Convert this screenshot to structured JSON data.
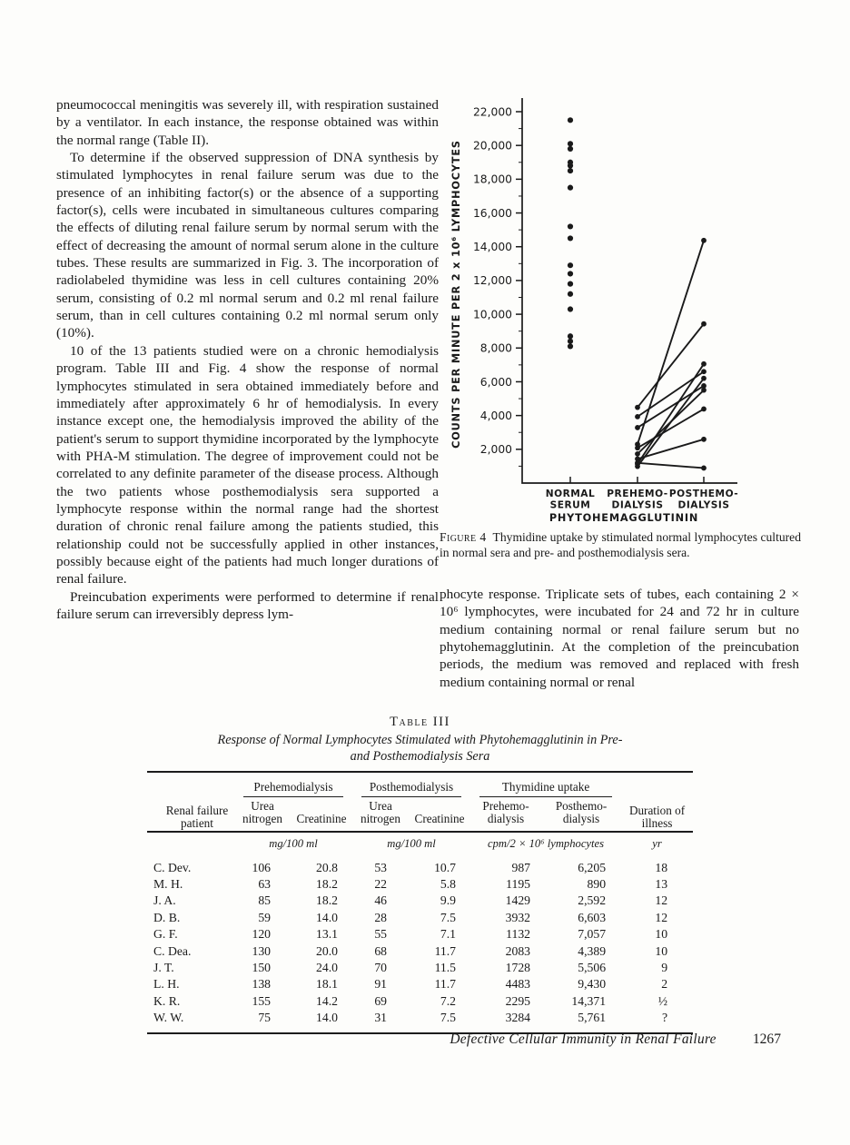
{
  "left_column": {
    "paragraphs": [
      {
        "indent": false,
        "text": "pneumococcal meningitis was severely ill, with respiration sustained by a ventilator. In each instance, the response obtained was within the normal range (Table II)."
      },
      {
        "indent": true,
        "text": "To determine if the observed suppression of DNA synthesis by stimulated lymphocytes in renal failure serum was due to the presence of an inhibiting factor(s) or the absence of a supporting factor(s), cells were incubated in simultaneous cultures comparing the effects of diluting renal failure serum by normal serum with the effect of decreasing the amount of normal serum alone in the culture tubes. These results are summarized in Fig. 3. The incorporation of radiolabeled thymidine was less in cell cultures containing 20% serum, consisting of 0.2 ml normal serum and 0.2 ml renal failure serum, than in cell cultures containing 0.2 ml normal serum only (10%)."
      },
      {
        "indent": true,
        "text": "10 of the 13 patients studied were on a chronic hemodialysis program. Table III and Fig. 4 show the response of normal lymphocytes stimulated in sera obtained immediately before and immediately after approximately 6 hr of hemodialysis. In every instance except one, the hemodialysis improved the ability of the patient's serum to support thymidine incorporated by the lymphocyte with PHA-M stimulation. The degree of improvement could not be correlated to any definite parameter of the disease process. Although the two patients whose posthemodialysis sera supported a lymphocyte response within the normal range had the shortest duration of chronic renal failure among the patients studied, this relationship could not be successfully applied in other instances, possibly because eight of the patients had much longer durations of renal failure."
      },
      {
        "indent": true,
        "text": "Preincubation experiments were performed to determine if renal failure serum can irreversibly depress lym-"
      }
    ]
  },
  "right_column": {
    "paragraphs": [
      {
        "indent": false,
        "text": "phocyte response. Triplicate sets of tubes, each containing 2 × 10⁶ lymphocytes, were incubated for 24 and 72 hr in culture medium containing normal or renal failure serum but no phytohemagglutinin. At the completion of the preincubation periods, the medium was removed and replaced with fresh medium containing normal or renal"
      }
    ]
  },
  "figure": {
    "caption_label": "Figure 4",
    "caption_text": "Thymidine uptake by stimulated normal lymphocytes cultured in normal sera and pre- and posthemodialysis sera."
  },
  "chart_data": {
    "type": "scatter",
    "title": "",
    "xlabel": "PHYTOHEMAGGLUTININ",
    "ylabel": "COUNTS PER MINUTE PER 2 x 10⁶ LYMPHOCYTES",
    "categories": [
      [
        "NORMAL",
        "SERUM"
      ],
      [
        "PREHEMO-",
        "DIALYSIS"
      ],
      [
        "POSTHEMO-",
        "DIALYSIS"
      ]
    ],
    "ylim": [
      0,
      22500
    ],
    "ytick_major_step": 2000,
    "ytick_minor_step": 1000,
    "ytick_label_min": 2000,
    "ytick_label_max": 22000,
    "grid": false,
    "legend": "none",
    "normal_serum_values": [
      21500,
      20100,
      19800,
      19000,
      18800,
      18500,
      17500,
      15200,
      14500,
      12900,
      12400,
      11800,
      11200,
      10300,
      8700,
      8400,
      8100
    ],
    "dialysis_series": [
      {
        "name": "C. Dev.",
        "pre": 987,
        "post": 6205
      },
      {
        "name": "M. H.",
        "pre": 1195,
        "post": 890
      },
      {
        "name": "J. A.",
        "pre": 1429,
        "post": 2592
      },
      {
        "name": "D. B.",
        "pre": 3932,
        "post": 6603
      },
      {
        "name": "G. F.",
        "pre": 1132,
        "post": 7057
      },
      {
        "name": "C. Dea.",
        "pre": 2083,
        "post": 4389
      },
      {
        "name": "J. T.",
        "pre": 1728,
        "post": 5506
      },
      {
        "name": "L. H.",
        "pre": 4483,
        "post": 9430
      },
      {
        "name": "K. R.",
        "pre": 2295,
        "post": 14371
      },
      {
        "name": "W. W.",
        "pre": 3284,
        "post": 5761
      }
    ]
  },
  "table": {
    "label": "Table III",
    "title_line1": "Response of Normal Lymphocytes Stimulated with Phytohemagglutinin in Pre-",
    "title_line2": "and Posthemodialysis Sera",
    "patient_header": "Renal failure patient",
    "duration_header": "Duration of illness",
    "groups": {
      "prehemodialysis": "Prehemodialysis",
      "posthemodialysis": "Posthemodialysis",
      "thymidine": "Thymidine uptake"
    },
    "subheaders": {
      "urea1": "Urea nitrogen",
      "creat1": "Creatinine",
      "urea2": "Urea nitrogen",
      "creat2": "Creatinine",
      "thy_pre": "Prehemo- dialysis",
      "thy_post": "Posthemo- dialysis"
    },
    "units": {
      "pre": "mg/100 ml",
      "post": "mg/100 ml",
      "thymidine": "cpm/2 × 10⁶ lymphocytes",
      "duration": "yr"
    },
    "rows": [
      [
        "C. Dev.",
        "106",
        "20.8",
        "53",
        "10.7",
        "987",
        "6,205",
        "18"
      ],
      [
        "M. H.",
        "63",
        "18.2",
        "22",
        "5.8",
        "1195",
        "890",
        "13"
      ],
      [
        "J. A.",
        "85",
        "18.2",
        "46",
        "9.9",
        "1429",
        "2,592",
        "12"
      ],
      [
        "D. B.",
        "59",
        "14.0",
        "28",
        "7.5",
        "3932",
        "6,603",
        "12"
      ],
      [
        "G. F.",
        "120",
        "13.1",
        "55",
        "7.1",
        "1132",
        "7,057",
        "10"
      ],
      [
        "C. Dea.",
        "130",
        "20.0",
        "68",
        "11.7",
        "2083",
        "4,389",
        "10"
      ],
      [
        "J. T.",
        "150",
        "24.0",
        "70",
        "11.5",
        "1728",
        "5,506",
        "9"
      ],
      [
        "L. H.",
        "138",
        "18.1",
        "91",
        "11.7",
        "4483",
        "9,430",
        "2"
      ],
      [
        "K. R.",
        "155",
        "14.2",
        "69",
        "7.2",
        "2295",
        "14,371",
        "½"
      ],
      [
        "W. W.",
        "75",
        "14.0",
        "31",
        "7.5",
        "3284",
        "5,761",
        "?"
      ]
    ]
  },
  "footer": {
    "running_title": "Defective Cellular Immunity in Renal Failure",
    "page_number": "1267"
  }
}
